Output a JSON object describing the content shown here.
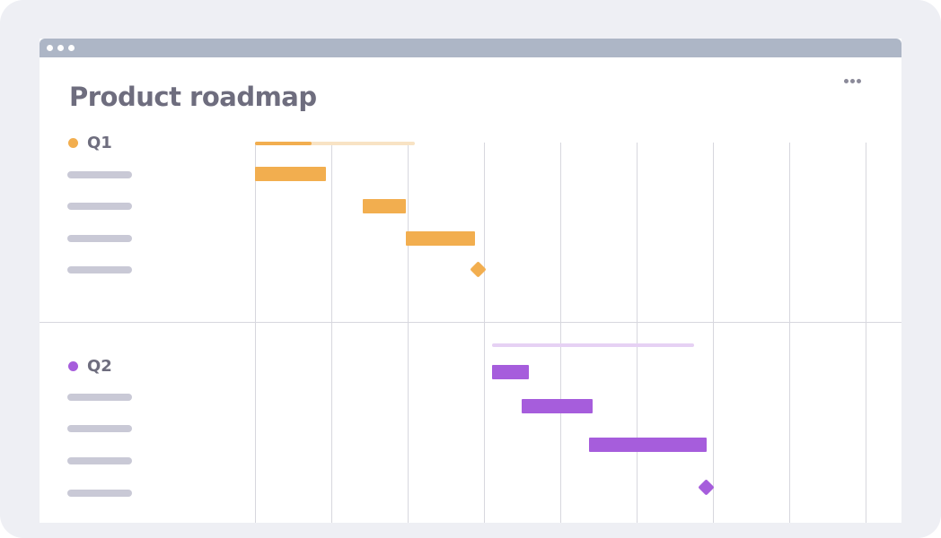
{
  "app": {
    "title": "Product roadmap",
    "more_icon": "more-horizontal-icon"
  },
  "colors": {
    "q1": "#f2ae4f",
    "q1_light": "#f8e3c4",
    "q2": "#a65ddc",
    "q2_light": "#e6d1f4",
    "placeholder": "#c9c9d6",
    "text": "#6e6d7e"
  },
  "quarters": [
    {
      "label": "Q1"
    },
    {
      "label": "Q2"
    }
  ]
}
